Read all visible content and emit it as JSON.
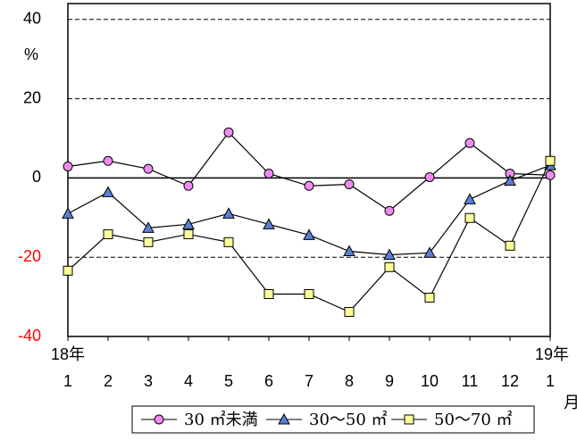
{
  "chart_data": {
    "type": "line",
    "categories": [
      "1",
      "2",
      "3",
      "4",
      "5",
      "6",
      "7",
      "8",
      "9",
      "10",
      "11",
      "12",
      "1"
    ],
    "year_labels": [
      "18年",
      "19年"
    ],
    "x_unit": "月",
    "y_unit": "%",
    "series": [
      {
        "name": "30 ㎡未満",
        "color": "#f08cf0",
        "marker": "circle",
        "values": [
          2.9,
          4.3,
          2.3,
          -2,
          11.5,
          1.1,
          -2,
          -1.6,
          -8.3,
          0.2,
          8.8,
          1.1,
          0.7
        ]
      },
      {
        "name": "30～50 ㎡",
        "color": "#5b7fd6",
        "marker": "triangle",
        "values": [
          -9,
          -3.6,
          -12.6,
          -11.7,
          -9,
          -11.7,
          -14.4,
          -18.5,
          -19.4,
          -18.9,
          -5.4,
          -0.7,
          3.2
        ]
      },
      {
        "name": "50～70 ㎡",
        "color": "#ffff99",
        "marker": "square",
        "values": [
          -23.4,
          -14.2,
          -16.2,
          -14.2,
          -16.2,
          -29.3,
          -29.3,
          -33.8,
          -22.5,
          -30.2,
          -10.1,
          -17.1,
          4.3
        ]
      }
    ],
    "ylim": [
      -40,
      44
    ],
    "yticks": [
      -40,
      -20,
      0,
      20,
      40
    ],
    "negative_tick_color": "#ff0000",
    "grid": true
  }
}
